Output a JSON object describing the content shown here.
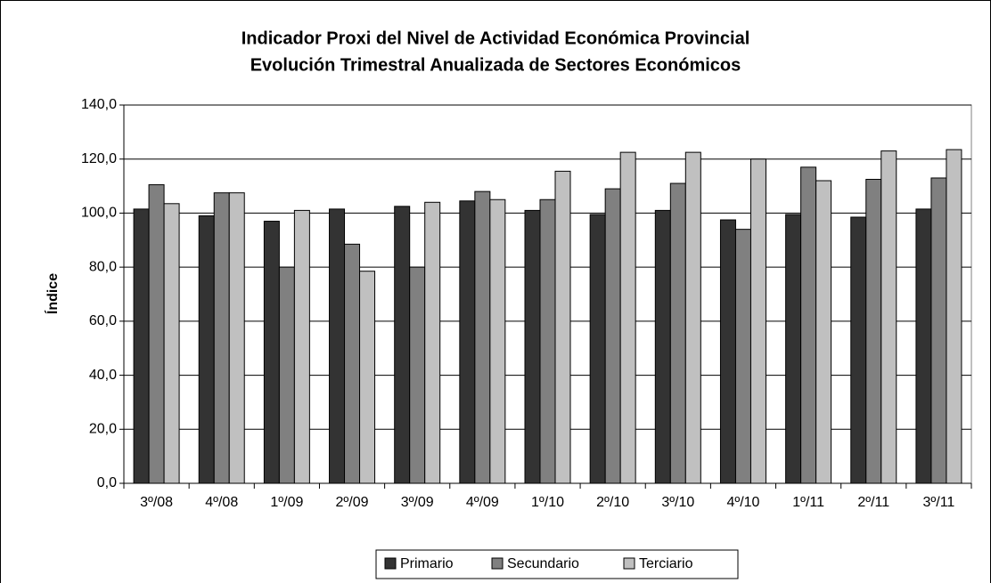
{
  "chart_data": {
    "type": "bar",
    "title": "Indicador Proxi del Nivel de Actividad Económica Provincial",
    "subtitle": "Evolución Trimestral Anualizada de Sectores Económicos",
    "y_label": "Índice",
    "categories": [
      "3º/08",
      "4º/08",
      "1º/09",
      "2º/09",
      "3º/09",
      "4º/09",
      "1º/10",
      "2º/10",
      "3º/10",
      "4º/10",
      "1º/11",
      "2º/11",
      "3º/11"
    ],
    "series": [
      {
        "name": "Primario",
        "color": "#333333",
        "values": [
          101.5,
          99,
          97,
          101.5,
          102.5,
          104.5,
          101,
          99.5,
          101,
          97.5,
          99.5,
          98.5,
          101.5
        ]
      },
      {
        "name": "Secundario",
        "color": "#808080",
        "values": [
          110.5,
          107.5,
          80,
          88.5,
          80,
          108,
          105,
          109,
          111,
          94,
          117,
          112.5,
          113
        ]
      },
      {
        "name": "Terciario",
        "color": "#c0c0c0",
        "values": [
          103.5,
          107.5,
          101,
          78.5,
          104,
          105,
          115.5,
          122.5,
          122.5,
          120,
          112,
          123,
          123.5
        ]
      }
    ],
    "ylim": [
      0,
      140
    ],
    "yticks": [
      {
        "value": 0,
        "label": "0,0"
      },
      {
        "value": 20,
        "label": "20,0"
      },
      {
        "value": 40,
        "label": "40,0"
      },
      {
        "value": 60,
        "label": "60,0"
      },
      {
        "value": 80,
        "label": "80,0"
      },
      {
        "value": 100,
        "label": "100,0"
      },
      {
        "value": 120,
        "label": "120,0"
      },
      {
        "value": 140,
        "label": "140,0"
      }
    ],
    "grid": true,
    "legend": "bottom"
  }
}
